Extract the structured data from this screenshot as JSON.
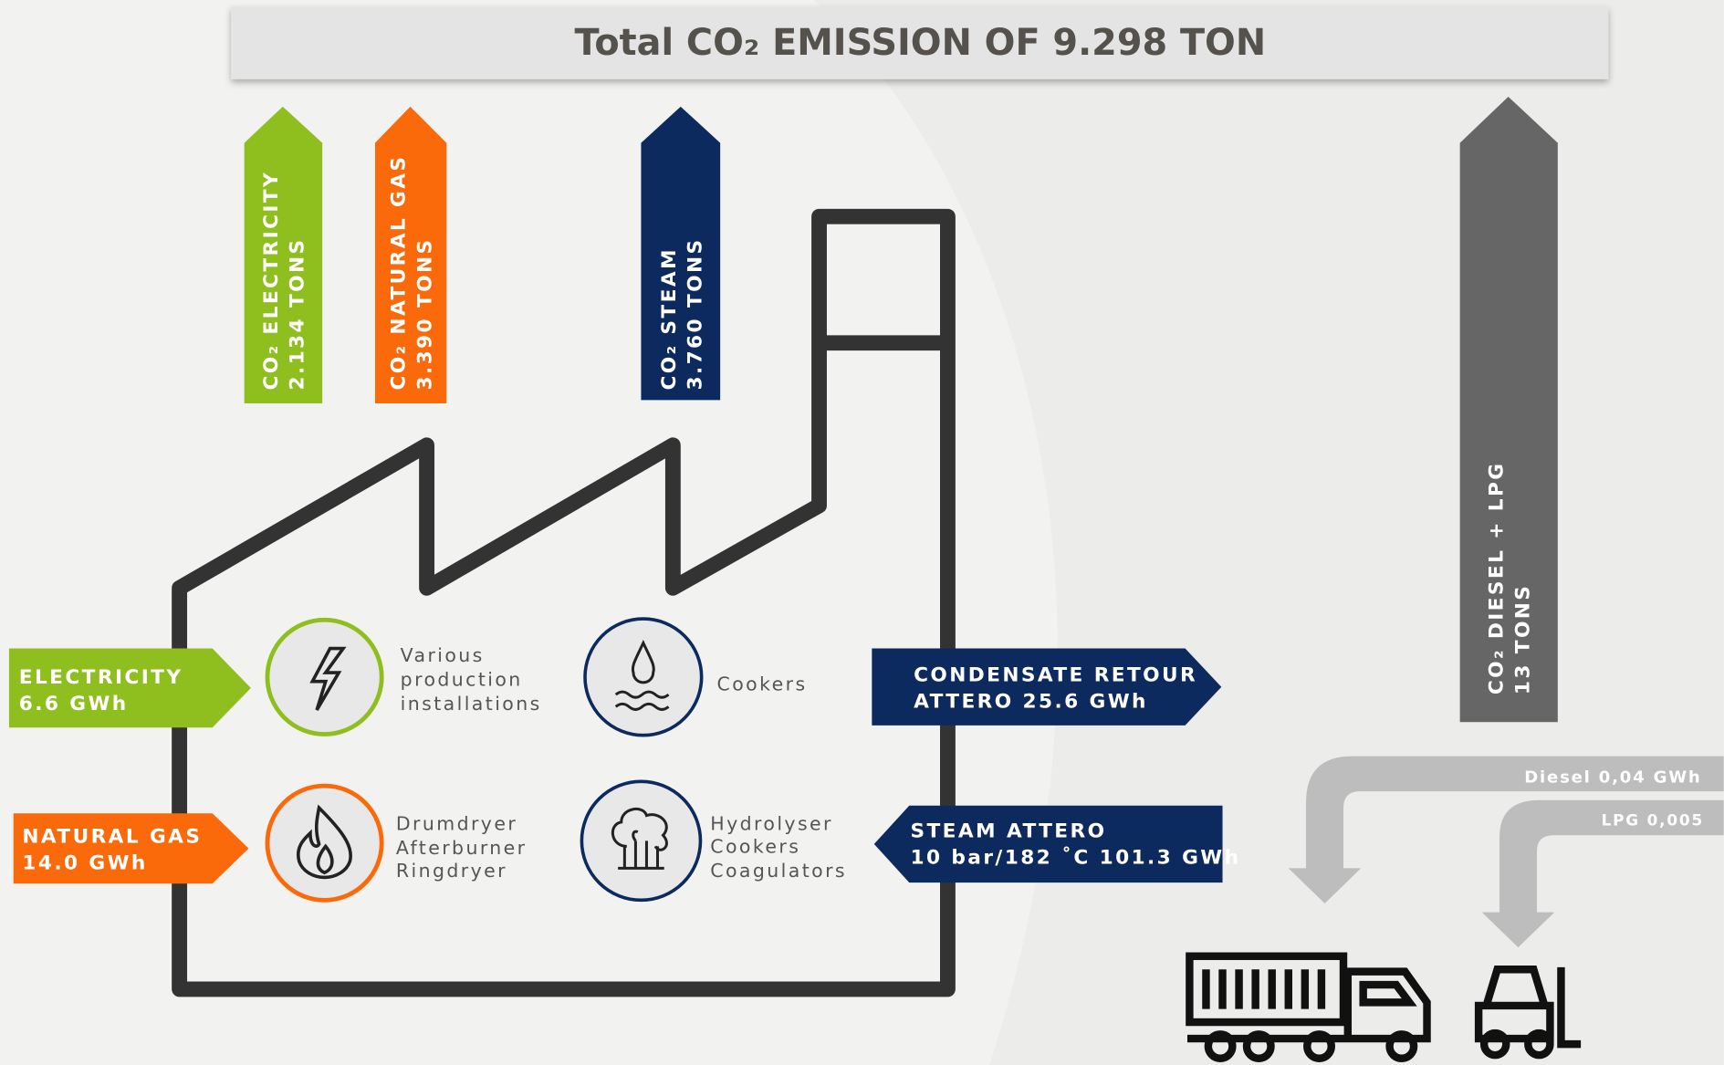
{
  "header": {
    "title": "Total CO₂ EMISSION OF 9.298 TON"
  },
  "emissions": [
    {
      "label": "CO₂ ELECTRICITY",
      "amount": "2.134 TONS"
    },
    {
      "label": "CO₂ NATURAL GAS",
      "amount": "3.390 TONS"
    },
    {
      "label": "CO₂ STEAM",
      "amount": "3.760 TONS"
    },
    {
      "label": "CO₂ DIESEL + LPG",
      "amount": "13 TONS"
    }
  ],
  "inputs": [
    {
      "label": "ELECTRICITY",
      "amount": "6.6 GWh"
    },
    {
      "label": "NATURAL GAS",
      "amount": "14.0 GWh"
    },
    {
      "label": "STEAM ATTERO",
      "amount": "10 bar/182 ˚C 101.3 GWh"
    }
  ],
  "output": {
    "label": "CONDENSATE RETOUR",
    "amount": "ATTERO 25.6 GWh"
  },
  "uses": [
    {
      "lines": [
        "Various",
        "production",
        "installations"
      ]
    },
    {
      "lines": [
        "Cookers"
      ]
    },
    {
      "lines": [
        "Drumdryer",
        "Afterburner",
        "Ringdryer"
      ]
    },
    {
      "lines": [
        "Hydrolyser",
        "Cookers",
        "Coagulators"
      ]
    }
  ],
  "fuels": [
    "Diesel 0,04 GWh",
    "LPG 0,005"
  ]
}
